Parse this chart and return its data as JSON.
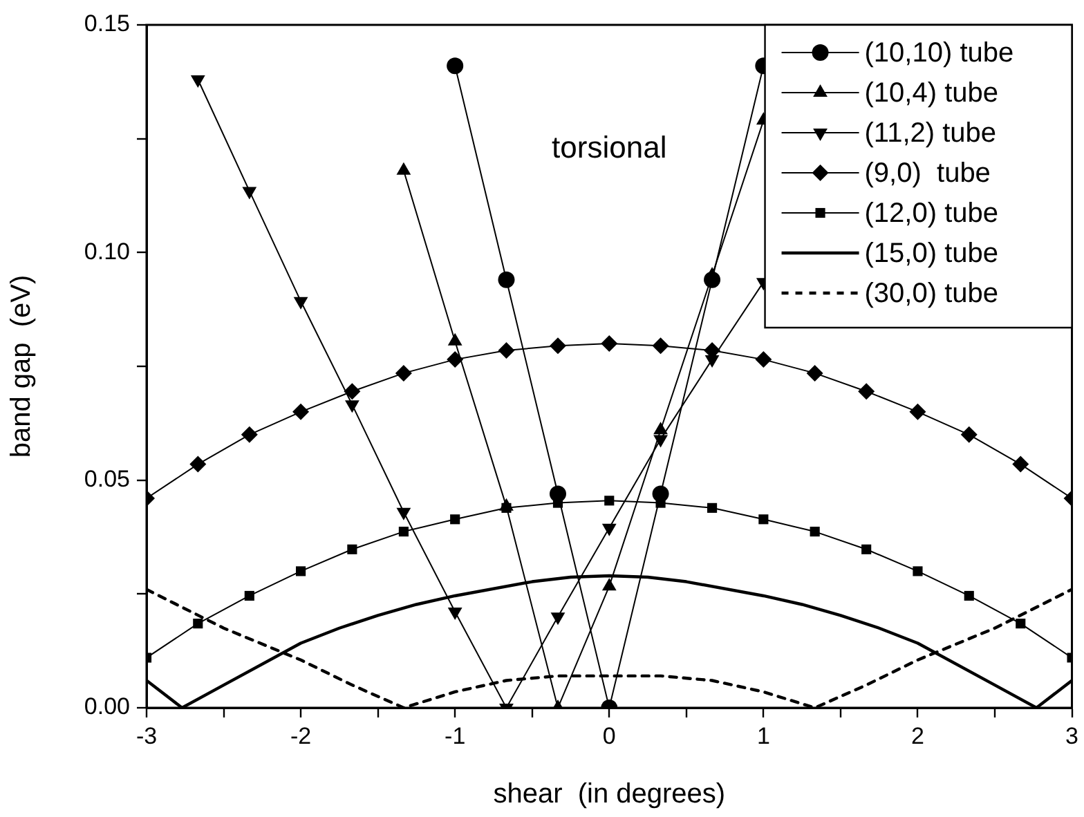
{
  "chart_data": {
    "type": "line",
    "xlabel": "shear  (in degrees)",
    "ylabel": "band gap  (eV)",
    "annotations": [
      "torsional"
    ],
    "xlim": [
      -3,
      3
    ],
    "xticks": [
      -3,
      {
        "value": -2.5,
        "label": null
      },
      -2,
      {
        "value": -1.5,
        "label": null
      },
      -1,
      {
        "value": -0.5,
        "label": null
      },
      0,
      {
        "value": 0.5,
        "label": null
      },
      1,
      {
        "value": 1.5,
        "label": null
      },
      2,
      {
        "value": 2.5,
        "label": null
      },
      3
    ],
    "ylim": [
      0,
      0.15
    ],
    "yticks": [
      {
        "value": 0,
        "label": "0.00"
      },
      {
        "value": 0.025,
        "label": null
      },
      {
        "value": 0.05,
        "label": "0.05"
      },
      {
        "value": 0.075,
        "label": null
      },
      {
        "value": 0.1,
        "label": "0.10"
      },
      {
        "value": 0.125,
        "label": null
      },
      {
        "value": 0.15,
        "label": "0.15"
      }
    ],
    "grid": false,
    "legend": "top right",
    "series": [
      {
        "name": "(10,10) tube",
        "color": "#000000",
        "marker": "circle",
        "line_style": "solid",
        "x": [
          -1,
          -0.667,
          -0.333,
          0,
          0.333,
          0.667,
          1
        ],
        "values": [
          0.141,
          0.094,
          0.047,
          0,
          0.047,
          0.094,
          0.141
        ]
      },
      {
        "name": "(10,4) tube",
        "color": "#000000",
        "marker": "triangle",
        "line_style": "solid",
        "x": [
          -1.333,
          -1,
          -0.667,
          -0.333,
          0,
          0.333,
          0.667,
          1
        ],
        "values": [
          0.118,
          0.0805,
          0.0442,
          0,
          0.0267,
          0.061,
          0.095,
          0.129
        ]
      },
      {
        "name": "(11,2) tube",
        "color": "#000000",
        "marker": "triangle-down",
        "line_style": "solid",
        "x": [
          -2.667,
          -2.333,
          -2,
          -1.667,
          -1.333,
          -1,
          -0.667,
          -0.333,
          0,
          0.333,
          0.667,
          1
        ],
        "values": [
          0.138,
          0.1135,
          0.0893,
          0.0666,
          0.043,
          0.0211,
          0,
          0.02,
          0.0395,
          0.059,
          0.0765,
          0.0935
        ]
      },
      {
        "name": "(9,0)  tube",
        "color": "#000000",
        "marker": "diamond",
        "line_style": "solid",
        "x": [
          -3,
          -2.667,
          -2.333,
          -2,
          -1.667,
          -1.333,
          -1,
          -0.667,
          -0.333,
          0,
          0.333,
          0.667,
          1,
          1.333,
          1.667,
          2,
          2.333,
          2.667,
          3
        ],
        "values": [
          0.046,
          0.0535,
          0.06,
          0.065,
          0.0695,
          0.0735,
          0.0765,
          0.0785,
          0.0795,
          0.08,
          0.0795,
          0.0785,
          0.0765,
          0.0735,
          0.0695,
          0.065,
          0.06,
          0.0535,
          0.046
        ]
      },
      {
        "name": "(12,0) tube",
        "color": "#000000",
        "marker": "square",
        "line_style": "solid",
        "x": [
          -3,
          -2.667,
          -2.333,
          -2,
          -1.667,
          -1.333,
          -1,
          -0.667,
          -0.333,
          0,
          0.333,
          0.667,
          1,
          1.333,
          1.667,
          2,
          2.333,
          2.667,
          3
        ],
        "values": [
          0.011,
          0.0185,
          0.0246,
          0.03,
          0.0348,
          0.0387,
          0.0414,
          0.0439,
          0.045,
          0.0455,
          0.045,
          0.0439,
          0.0414,
          0.0387,
          0.0348,
          0.03,
          0.0246,
          0.0185,
          0.011
        ]
      },
      {
        "name": "(15,0) tube",
        "color": "#000000",
        "marker": "none",
        "line_style": "solid",
        "x": [
          -3,
          -2.77,
          -2.5,
          -2,
          -1.75,
          -1.5,
          -1.25,
          -1,
          -0.5,
          -0.25,
          0,
          0.25,
          0.5,
          1,
          1.25,
          1.5,
          1.75,
          2,
          2.5,
          2.77,
          3
        ],
        "values": [
          0.006,
          0,
          0.005,
          0.0142,
          0.0175,
          0.0203,
          0.0227,
          0.0246,
          0.0277,
          0.0287,
          0.029,
          0.0287,
          0.0277,
          0.0246,
          0.0227,
          0.0203,
          0.0175,
          0.0142,
          0.005,
          0,
          0.006
        ]
      },
      {
        "name": "(30,0) tube",
        "color": "#000000",
        "marker": "none",
        "line_style": "dashed",
        "x": [
          -3,
          -2.5,
          -2,
          -1.667,
          -1.333,
          -1,
          -0.667,
          -0.333,
          0,
          0.333,
          0.667,
          1,
          1.333,
          1.667,
          2,
          2.5,
          3
        ],
        "values": [
          0.026,
          0.0175,
          0.0105,
          0.005,
          0,
          0.0035,
          0.006,
          0.007,
          0.007,
          0.007,
          0.006,
          0.0035,
          0,
          0.005,
          0.0105,
          0.0175,
          0.026
        ]
      }
    ]
  }
}
